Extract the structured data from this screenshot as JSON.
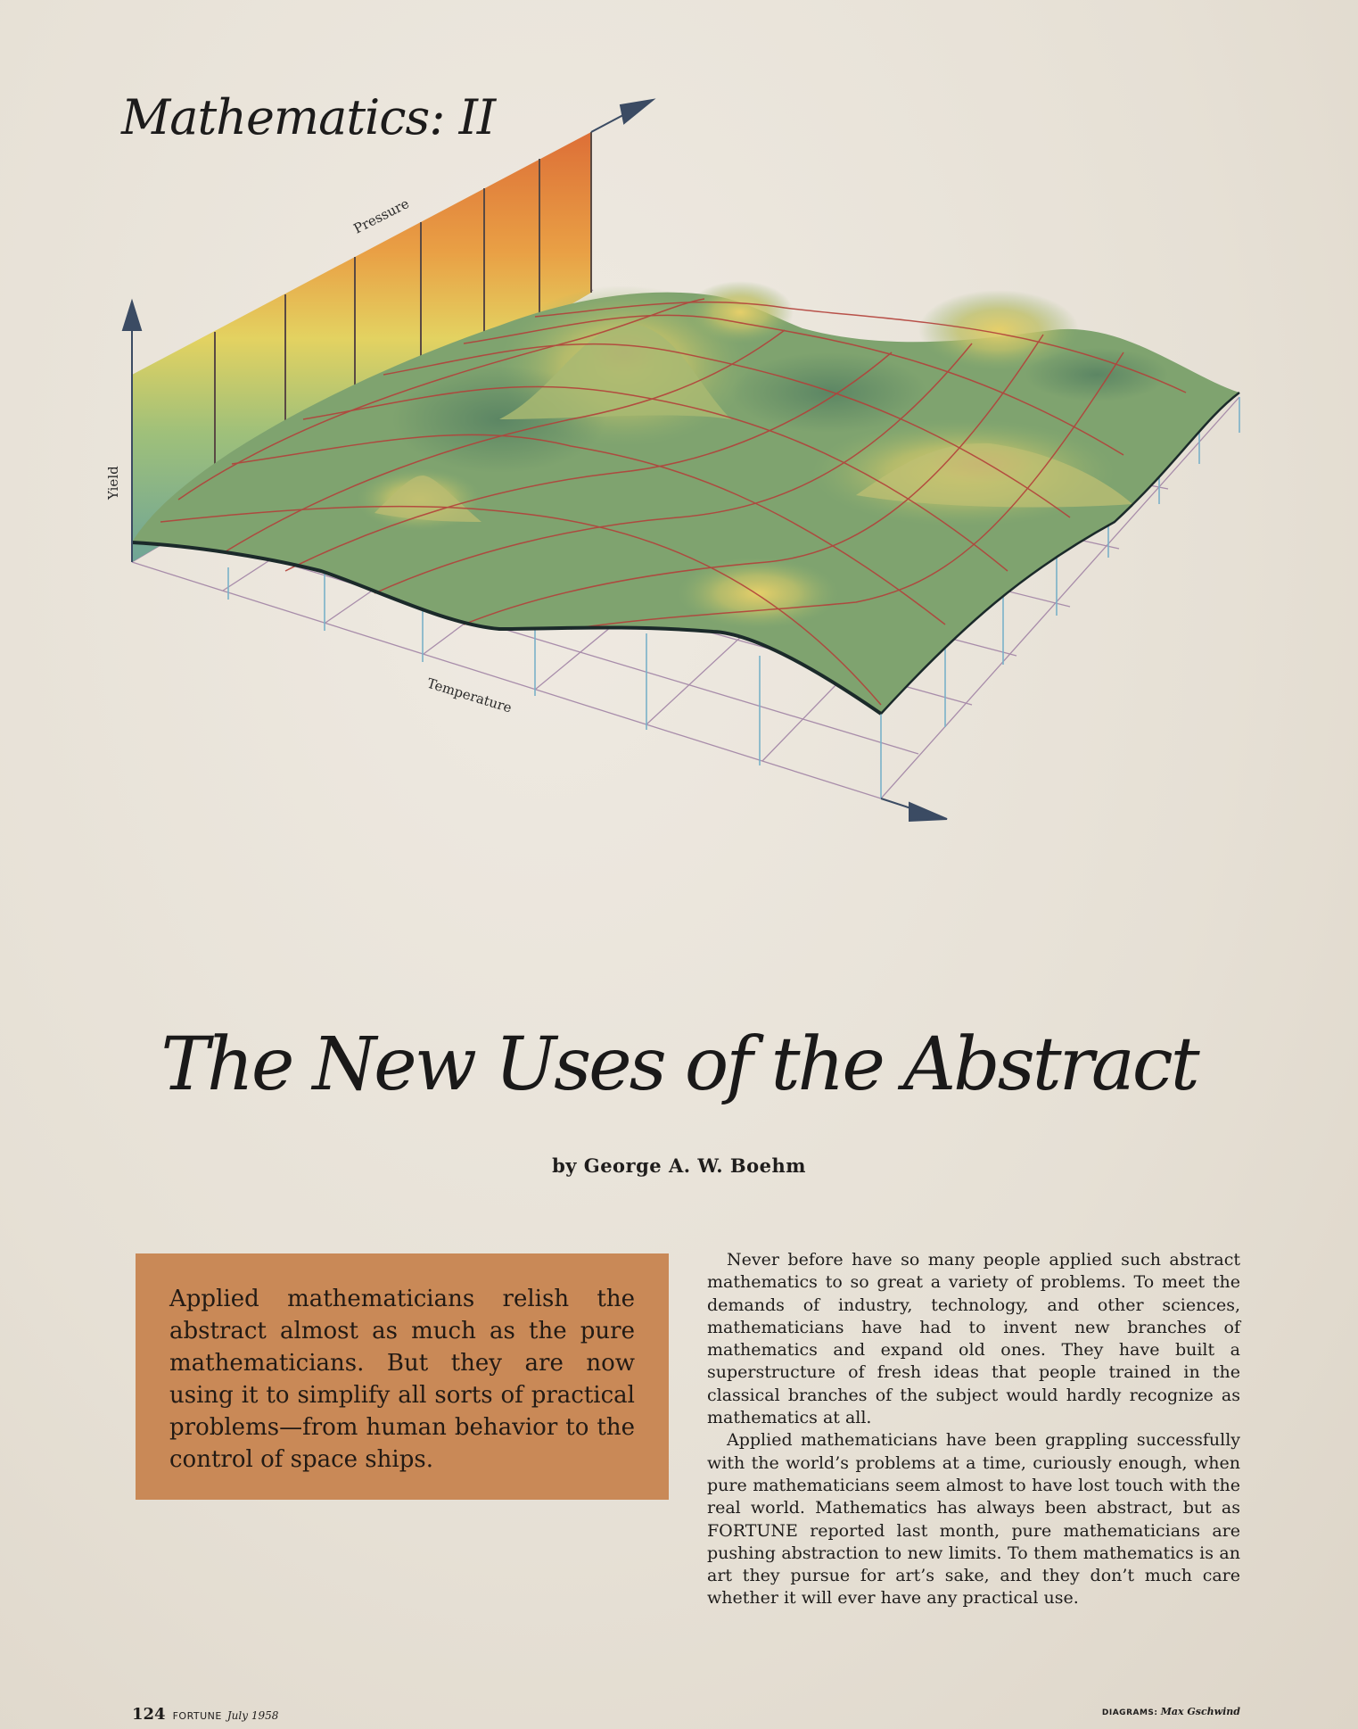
{
  "section_title": "Mathematics: II",
  "figure": {
    "axis_pressure": "Pressure",
    "axis_yield": "Yield",
    "axis_temperature": "Temperature"
  },
  "headline": "The New Uses of the Abstract",
  "byline": "by George A. W. Boehm",
  "pull_quote": "Applied mathematicians relish the abstract almost as much as the pure mathematicians. But they are now using it to simplify all sorts of practical problems—from human behavior to the control of space ships.",
  "body": [
    "Never before have so many people applied such abstract mathematics to so great a variety of problems. To meet the demands of industry, technology, and other sciences, mathematicians have had to invent new branches of mathematics and expand old ones. They have built a superstructure of fresh ideas that people trained in the classical branches of the subject would hardly recognize as mathematics at all.",
    "Applied mathematicians have been grappling successfully with the world’s problems at a time, curiously enough, when pure mathematicians seem almost to have lost touch with the real world. Mathematics has always been abstract, but as FORTUNE reported last month, pure mathematicians are pushing abstraction to new limits. To them mathematics is an art they pursue for art’s sake, and they don’t much care whether it will ever have any practical use."
  ],
  "footer": {
    "page_number": "124",
    "magazine": "FORTUNE",
    "date": "July 1958",
    "credit_label": "DIAGRAMS:",
    "credit_name": "Max Gschwind"
  },
  "colors": {
    "pull_box": "#c98957",
    "surface": "#7fa36f",
    "grid_lines": "#b3413a",
    "stripe_orange": "#de7a3c",
    "stripe_yellow": "#e3cf5e",
    "stripe_teal": "#79a99a"
  }
}
